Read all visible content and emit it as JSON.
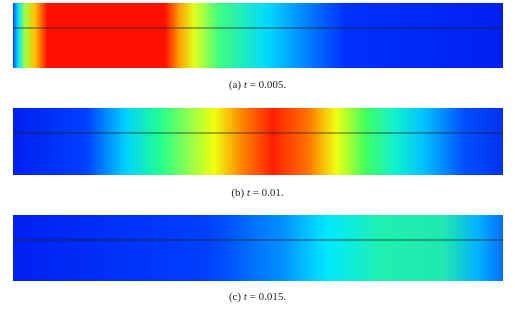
{
  "figures": [
    {
      "label": "(a)",
      "variable": "t",
      "value": "= 0.005."
    },
    {
      "label": "(b)",
      "variable": "t",
      "value": "= 0.01."
    },
    {
      "label": "(c)",
      "variable": "t",
      "value": "= 0.015."
    }
  ]
}
